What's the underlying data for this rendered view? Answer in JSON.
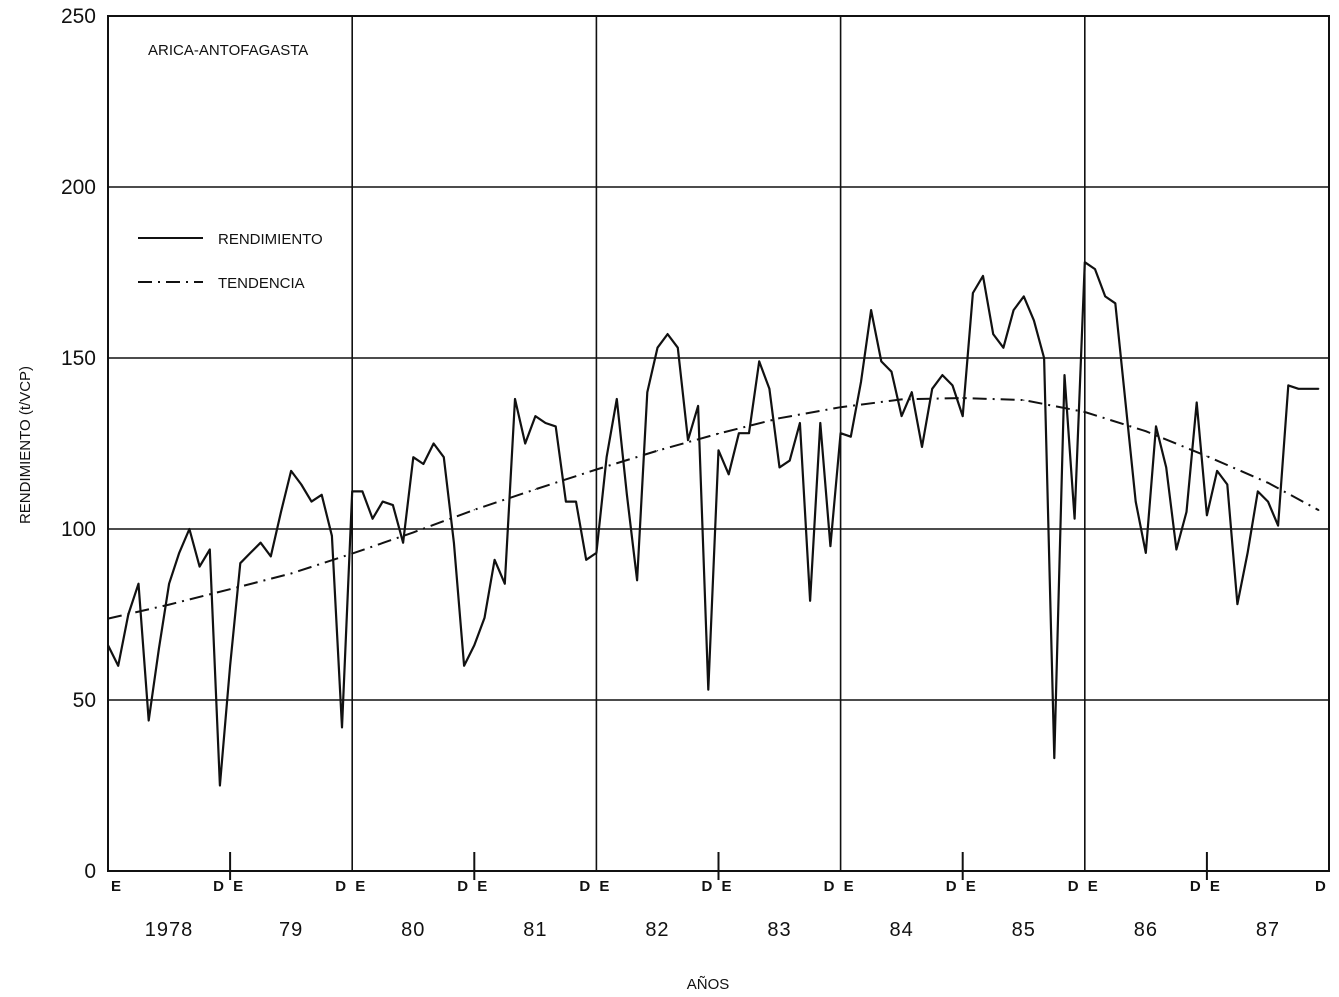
{
  "chart_data": {
    "type": "line",
    "title": "ARICA-ANTOFAGASTA",
    "xlabel": "AÑOS",
    "ylabel": "RENDIMIENTO (t/VCP)",
    "ylim": [
      0,
      250
    ],
    "yticks": [
      0,
      50,
      100,
      150,
      200,
      250
    ],
    "xlim": [
      0,
      120
    ],
    "grid": true,
    "legend_position": "top-left",
    "year_labels": [
      "1978",
      "79",
      "80",
      "81",
      "82",
      "83",
      "84",
      "85",
      "86",
      "87"
    ],
    "month_marks": {
      "start": "E",
      "end": "D"
    },
    "series": [
      {
        "name": "RENDIMIENTO",
        "style": "solid",
        "x": [
          0,
          1,
          2,
          3,
          4,
          5,
          6,
          7,
          8,
          9,
          10,
          11,
          12,
          13,
          14,
          15,
          16,
          17,
          18,
          19,
          20,
          21,
          22,
          23,
          24,
          25,
          26,
          27,
          28,
          29,
          30,
          31,
          32,
          33,
          34,
          35,
          36,
          37,
          38,
          39,
          40,
          41,
          42,
          43,
          44,
          45,
          46,
          47,
          48,
          49,
          50,
          51,
          52,
          53,
          54,
          55,
          56,
          57,
          58,
          59,
          60,
          61,
          62,
          63,
          64,
          65,
          66,
          67,
          68,
          69,
          70,
          71,
          72,
          73,
          74,
          75,
          76,
          77,
          78,
          79,
          80,
          81,
          82,
          83,
          84,
          85,
          86,
          87,
          88,
          89,
          90,
          91,
          92,
          93,
          94,
          95,
          96,
          97,
          98,
          99,
          100,
          101,
          102,
          103,
          104,
          105,
          106,
          107,
          108,
          109,
          110,
          111,
          112,
          113,
          114,
          115,
          116,
          117,
          118,
          119
        ],
        "values": [
          66,
          60,
          75,
          84,
          44,
          65,
          84,
          93,
          100,
          89,
          94,
          25,
          60,
          90,
          93,
          96,
          92,
          105,
          117,
          113,
          108,
          110,
          98,
          42,
          111,
          111,
          103,
          108,
          107,
          96,
          121,
          119,
          125,
          121,
          96,
          60,
          66,
          74,
          91,
          84,
          138,
          125,
          133,
          131,
          130,
          108,
          108,
          91,
          93,
          121,
          138,
          110,
          85,
          140,
          153,
          157,
          153,
          126,
          136,
          53,
          123,
          116,
          128,
          128,
          149,
          141,
          118,
          120,
          131,
          79,
          131,
          95,
          128,
          127,
          143,
          164,
          149,
          146,
          133,
          140,
          124,
          141,
          145,
          142,
          133,
          169,
          174,
          157,
          153,
          164,
          168,
          161,
          150,
          33,
          145,
          103,
          178,
          176,
          168,
          166,
          137,
          108,
          93,
          130,
          118,
          94,
          105,
          137,
          104,
          117,
          113,
          78,
          93,
          111,
          108,
          101,
          142,
          141,
          141,
          141
        ]
      },
      {
        "name": "TENDENCIA",
        "style": "dash-dot",
        "x": [
          0,
          6,
          12,
          18,
          24,
          30,
          36,
          42,
          48,
          54,
          60,
          66,
          72,
          78,
          84,
          90,
          96,
          102,
          108,
          114,
          119
        ],
        "values": [
          73.8,
          77.9,
          82.4,
          87.0,
          92.8,
          99.0,
          105.6,
          111.6,
          117.4,
          122.9,
          127.9,
          132.4,
          135.6,
          137.9,
          138.3,
          137.7,
          134.2,
          128.6,
          121.3,
          113.5,
          105.5
        ]
      }
    ]
  }
}
